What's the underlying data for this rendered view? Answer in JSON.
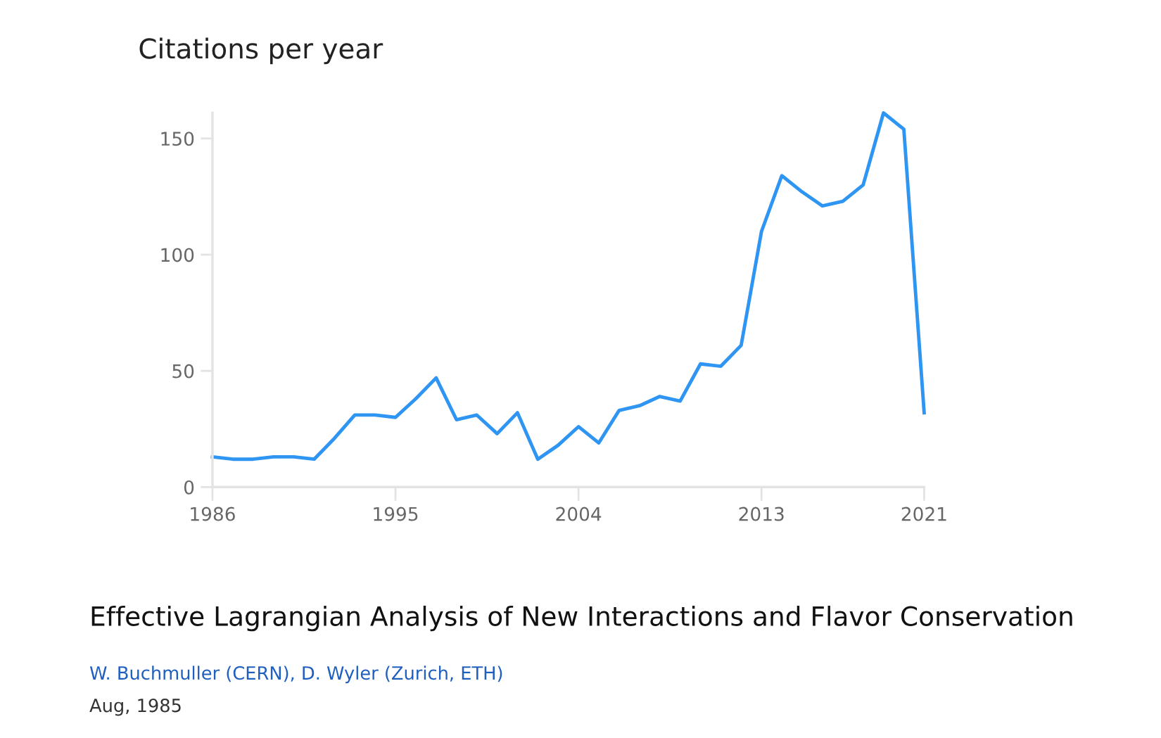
{
  "chart_data": {
    "type": "line",
    "title": "Citations per year",
    "x": [
      1986,
      1987,
      1988,
      1989,
      1990,
      1991,
      1992,
      1993,
      1994,
      1995,
      1996,
      1997,
      1998,
      1999,
      2000,
      2001,
      2002,
      2003,
      2004,
      2005,
      2006,
      2007,
      2008,
      2009,
      2010,
      2011,
      2012,
      2013,
      2014,
      2015,
      2016,
      2017,
      2018,
      2019,
      2020,
      2021
    ],
    "series": [
      {
        "color": "#2f95f3",
        "values": [
          13,
          12,
          12,
          13,
          13,
          12,
          21,
          31,
          31,
          30,
          38,
          47,
          29,
          31,
          23,
          32,
          12,
          18,
          26,
          19,
          33,
          35,
          39,
          37,
          53,
          52,
          61,
          110,
          134,
          127,
          121,
          123,
          130,
          161,
          154,
          32
        ]
      }
    ],
    "xlim": [
      1986,
      2021
    ],
    "xticks": [
      1986,
      1995,
      2004,
      2013,
      2021
    ],
    "ylim": [
      0,
      161
    ],
    "yticks": [
      0,
      50,
      100,
      150
    ],
    "grid": false,
    "marker": "none",
    "line_style": "solid",
    "annotations": [
      "Effective Lagrangian Analysis of New Interactions and Flavor Conservation",
      "W. Buchmuller (CERN), D. Wyler (Zurich, ETH)",
      "Aug, 1985"
    ]
  }
}
